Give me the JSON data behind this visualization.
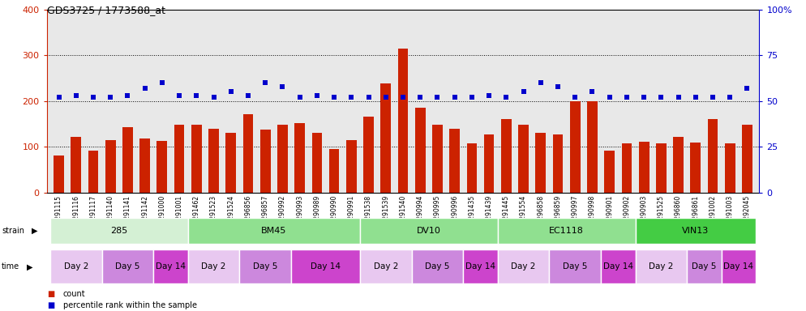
{
  "title": "GDS3725 / 1773588_at",
  "samples": [
    "GSM291115",
    "GSM291116",
    "GSM291117",
    "GSM291140",
    "GSM291141",
    "GSM291142",
    "GSM291000",
    "GSM291001",
    "GSM291462",
    "GSM291523",
    "GSM291524",
    "GSM296856",
    "GSM296857",
    "GSM290992",
    "GSM290993",
    "GSM290989",
    "GSM290990",
    "GSM290991",
    "GSM291538",
    "GSM291539",
    "GSM291540",
    "GSM290994",
    "GSM290995",
    "GSM290996",
    "GSM291435",
    "GSM291439",
    "GSM291445",
    "GSM291554",
    "GSM296858",
    "GSM296859",
    "GSM290997",
    "GSM290998",
    "GSM290901",
    "GSM290902",
    "GSM290903",
    "GSM291525",
    "GSM296860",
    "GSM296861",
    "GSM291002",
    "GSM291003",
    "GSM292045"
  ],
  "counts": [
    82,
    122,
    92,
    115,
    143,
    118,
    113,
    148,
    148,
    140,
    130,
    172,
    138,
    148,
    152,
    130,
    95,
    115,
    166,
    238,
    315,
    185,
    148,
    140,
    108,
    127,
    160,
    148,
    130,
    128,
    200,
    200,
    92,
    108,
    112,
    108,
    122,
    110,
    160,
    108,
    148
  ],
  "percentiles": [
    52,
    53,
    52,
    52,
    53,
    57,
    60,
    53,
    53,
    52,
    55,
    53,
    60,
    58,
    52,
    53,
    52,
    52,
    52,
    52,
    52,
    52,
    52,
    52,
    52,
    53,
    52,
    55,
    60,
    58,
    52,
    55,
    52,
    52,
    52,
    52,
    52,
    52,
    52,
    52,
    57
  ],
  "strains": [
    {
      "label": "285",
      "start": 0,
      "end": 8,
      "color": "#d4f0d4"
    },
    {
      "label": "BM45",
      "start": 8,
      "end": 18,
      "color": "#90e090"
    },
    {
      "label": "DV10",
      "start": 18,
      "end": 26,
      "color": "#90e090"
    },
    {
      "label": "EC1118",
      "start": 26,
      "end": 34,
      "color": "#90e090"
    },
    {
      "label": "VIN13",
      "start": 34,
      "end": 41,
      "color": "#44cc44"
    }
  ],
  "times": [
    {
      "label": "Day 2",
      "start": 0,
      "end": 3,
      "color": "#e8c8f0"
    },
    {
      "label": "Day 5",
      "start": 3,
      "end": 6,
      "color": "#cc88dd"
    },
    {
      "label": "Day 14",
      "start": 6,
      "end": 8,
      "color": "#cc44cc"
    },
    {
      "label": "Day 2",
      "start": 8,
      "end": 11,
      "color": "#e8c8f0"
    },
    {
      "label": "Day 5",
      "start": 11,
      "end": 14,
      "color": "#cc88dd"
    },
    {
      "label": "Day 14",
      "start": 14,
      "end": 18,
      "color": "#cc44cc"
    },
    {
      "label": "Day 2",
      "start": 18,
      "end": 21,
      "color": "#e8c8f0"
    },
    {
      "label": "Day 5",
      "start": 21,
      "end": 24,
      "color": "#cc88dd"
    },
    {
      "label": "Day 14",
      "start": 24,
      "end": 26,
      "color": "#cc44cc"
    },
    {
      "label": "Day 2",
      "start": 26,
      "end": 29,
      "color": "#e8c8f0"
    },
    {
      "label": "Day 5",
      "start": 29,
      "end": 32,
      "color": "#cc88dd"
    },
    {
      "label": "Day 14",
      "start": 32,
      "end": 34,
      "color": "#cc44cc"
    },
    {
      "label": "Day 2",
      "start": 34,
      "end": 37,
      "color": "#e8c8f0"
    },
    {
      "label": "Day 5",
      "start": 37,
      "end": 39,
      "color": "#cc88dd"
    },
    {
      "label": "Day 14",
      "start": 39,
      "end": 41,
      "color": "#cc44cc"
    }
  ],
  "bar_color": "#cc2200",
  "dot_color": "#0000cc",
  "ylim_left": [
    0,
    400
  ],
  "ylim_right": [
    0,
    100
  ],
  "yticks_left": [
    0,
    100,
    200,
    300,
    400
  ],
  "yticks_right": [
    0,
    25,
    50,
    75,
    100
  ],
  "grid_values": [
    100,
    200,
    300
  ],
  "plot_bg": "#e8e8e8",
  "fig_bg": "white"
}
